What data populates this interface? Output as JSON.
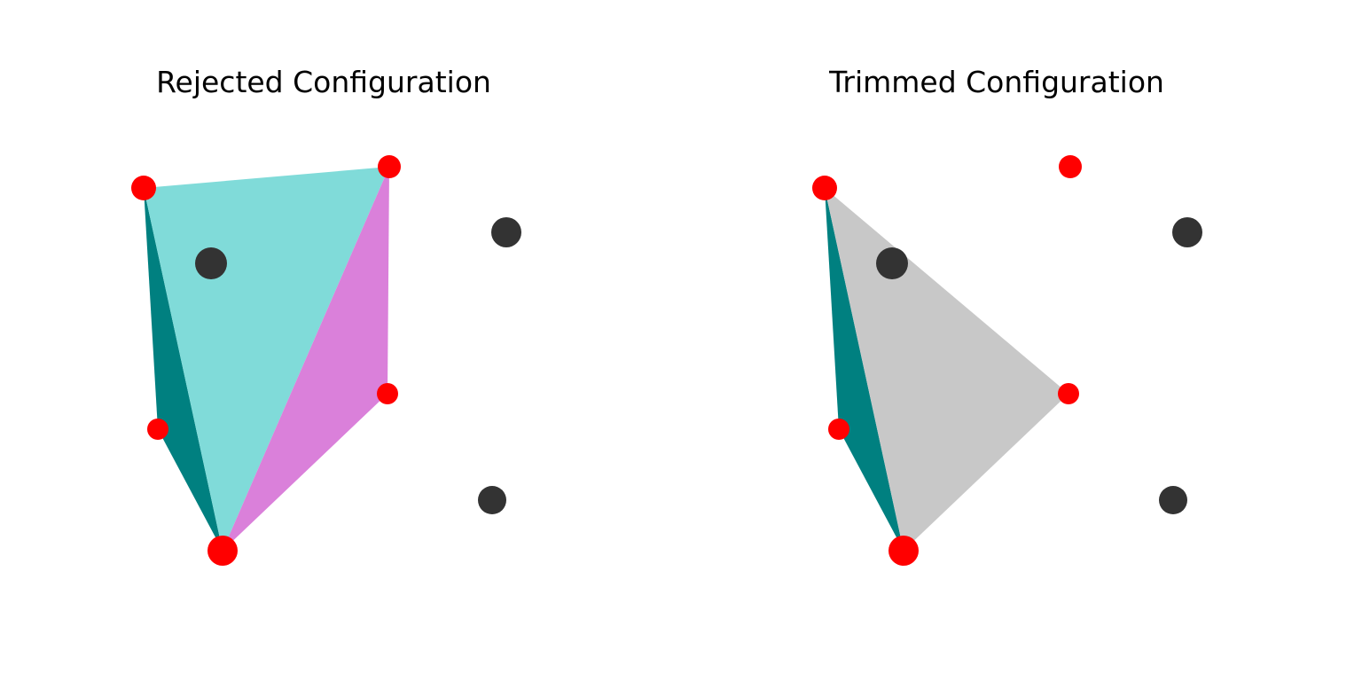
{
  "colors": {
    "background": "#ffffff",
    "highlight_point": "#ff0000",
    "other_point": "#333333",
    "teal_light": "#80dbd9",
    "teal_dark": "#008080",
    "magenta": "#da80da",
    "gray": "#c8c8c8"
  },
  "panels": [
    {
      "key": "rejected",
      "title": "Rejected Configuration",
      "faces": [
        {
          "name": "dark-teal-face",
          "color": "#008080",
          "vertices": [
            "A",
            "D",
            "C"
          ]
        },
        {
          "name": "light-teal-face",
          "color": "#80dbd9",
          "vertices": [
            "A",
            "B",
            "D"
          ]
        },
        {
          "name": "magenta-face",
          "color": "#da80da",
          "vertices": [
            "B",
            "E",
            "D"
          ]
        }
      ]
    },
    {
      "key": "trimmed",
      "title": "Trimmed Configuration",
      "faces": [
        {
          "name": "dark-teal-face",
          "color": "#008080",
          "vertices": [
            "A",
            "D",
            "C"
          ]
        },
        {
          "name": "gray-face",
          "color": "#c8c8c8",
          "vertices": [
            "A",
            "E",
            "D"
          ]
        }
      ]
    }
  ]
}
